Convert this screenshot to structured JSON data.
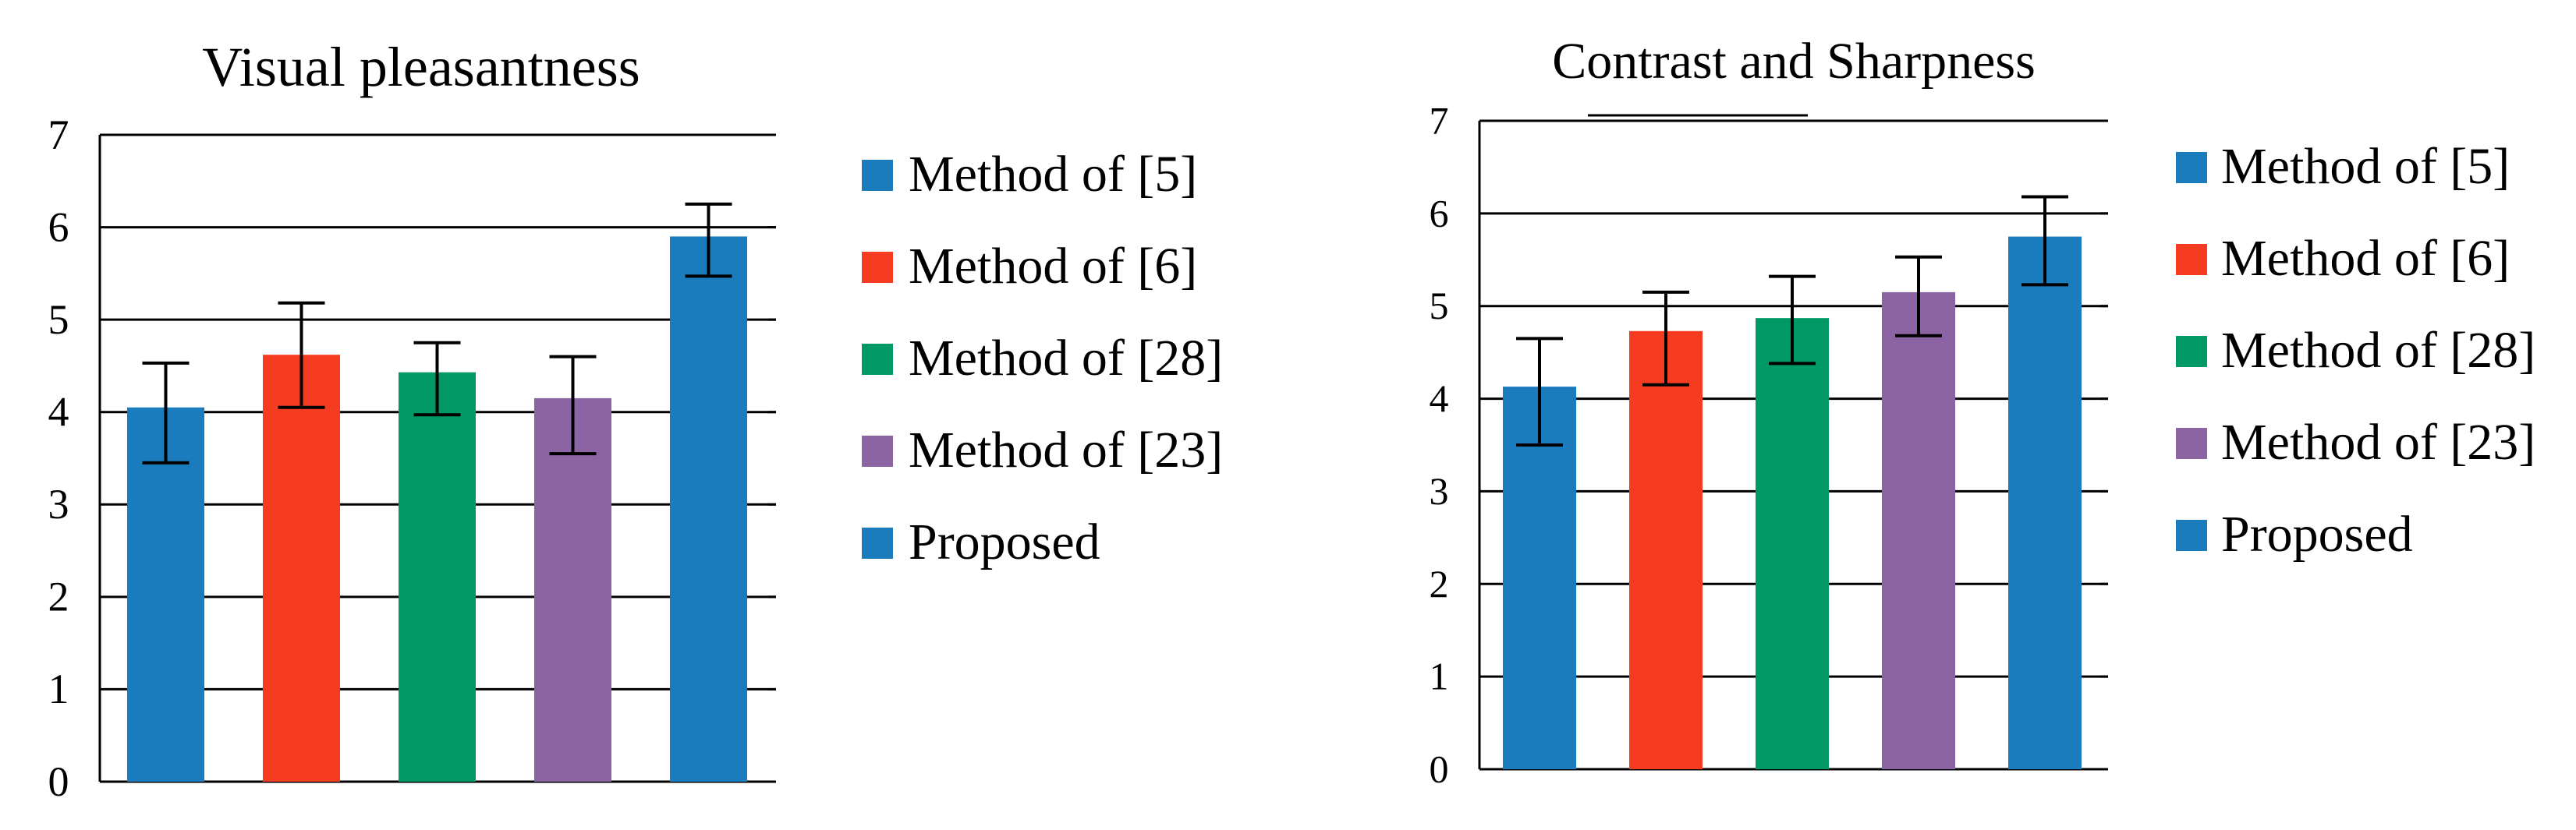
{
  "chart_data": [
    {
      "type": "bar",
      "title": "Visual pleasantness",
      "categories": [
        "Method of [5]",
        "Method of [6]",
        "Method of [28]",
        "Method of [23]",
        "Proposed"
      ],
      "values": [
        4.05,
        4.62,
        4.43,
        4.15,
        5.9
      ],
      "error_low": [
        3.45,
        4.05,
        3.97,
        3.55,
        5.47
      ],
      "error_high": [
        4.53,
        5.18,
        4.75,
        4.6,
        6.25
      ],
      "colors": [
        "#1a7bbd",
        "#f63c20",
        "#009966",
        "#8c63a3",
        "#1a7bbd"
      ],
      "yticks": [
        "0",
        "1",
        "2",
        "3",
        "4",
        "5",
        "6",
        "7"
      ],
      "ylim": [
        0,
        7
      ],
      "grid": true,
      "xlabel": "",
      "ylabel": "",
      "legend_position": "right",
      "legend": [
        "Method of [5]",
        "Method of [6]",
        "Method of [28]",
        "Method of [23]",
        "Proposed"
      ]
    },
    {
      "type": "bar",
      "title": "Contrast and Sharpness",
      "categories": [
        "Method of [5]",
        "Method of [6]",
        "Method of [28]",
        "Method of [23]",
        "Proposed"
      ],
      "values": [
        4.13,
        4.73,
        4.87,
        5.15,
        5.75
      ],
      "error_low": [
        3.5,
        4.15,
        4.38,
        4.68,
        5.23
      ],
      "error_high": [
        4.65,
        5.15,
        5.32,
        5.53,
        6.18
      ],
      "colors": [
        "#1a7bbd",
        "#f63c20",
        "#009966",
        "#8c63a3",
        "#1a7bbd"
      ],
      "yticks": [
        "0",
        "1",
        "2",
        "3",
        "4",
        "5",
        "6",
        "7"
      ],
      "ylim": [
        0,
        7
      ],
      "grid": true,
      "xlabel": "",
      "ylabel": "",
      "legend_position": "right",
      "legend": [
        "Method of [5]",
        "Method of [6]",
        "Method of [28]",
        "Method of [23]",
        "Proposed"
      ]
    }
  ]
}
